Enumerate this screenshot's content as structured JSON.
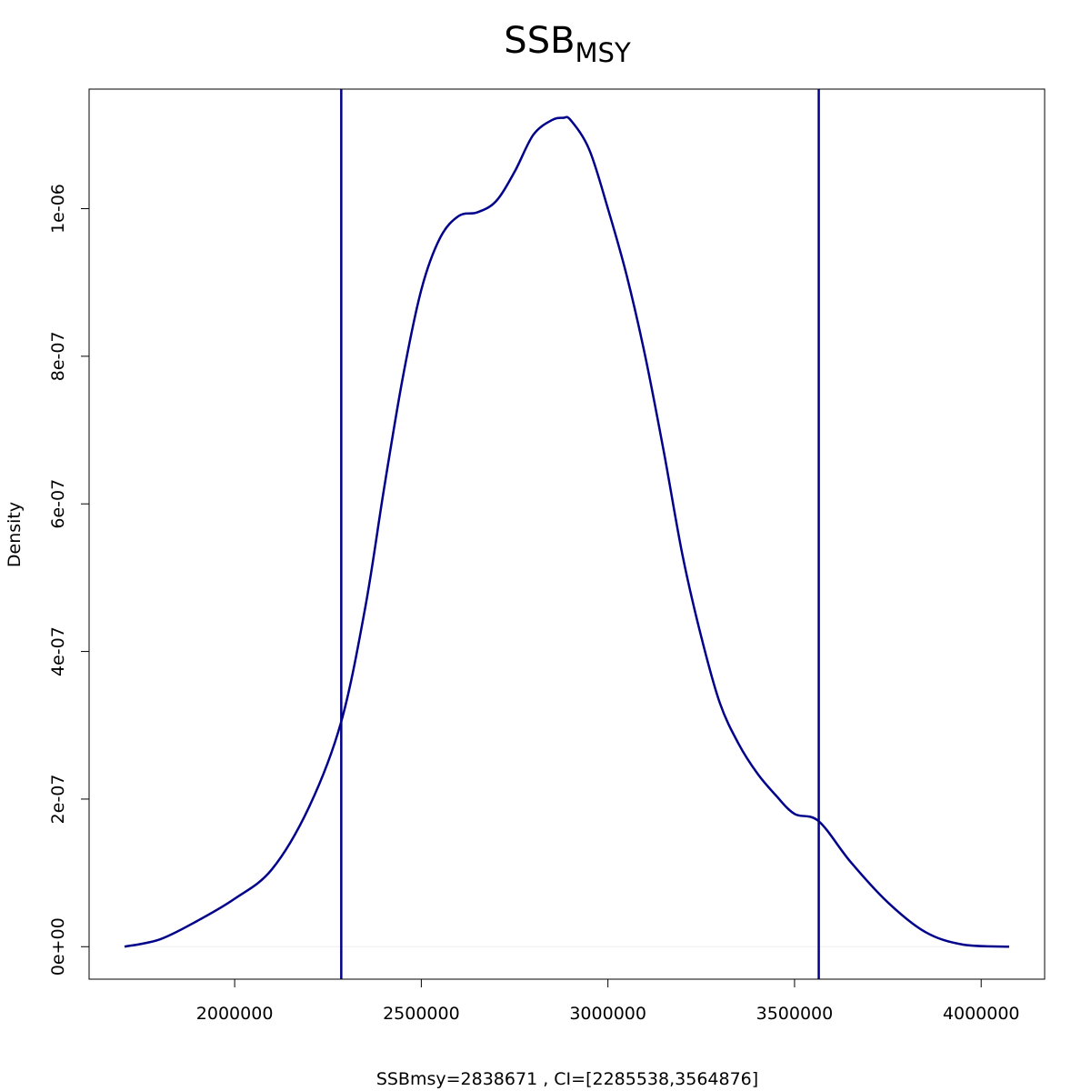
{
  "chart_data": {
    "type": "line",
    "title": "SSB",
    "title_subscript": "MSY",
    "xlabel": "SSBmsy=2838671 , CI=[2285538,3564876]",
    "ylabel": "Density",
    "xlim": [
      1610000,
      4170000
    ],
    "ylim": [
      -4.4e-08,
      1.162e-06
    ],
    "x_ticks": [
      2000000,
      2500000,
      3000000,
      3500000,
      4000000
    ],
    "x_tick_labels": [
      "2000000",
      "2500000",
      "3000000",
      "3500000",
      "4000000"
    ],
    "y_ticks": [
      0,
      2e-07,
      4e-07,
      6e-07,
      8e-07,
      1e-06
    ],
    "y_tick_labels": [
      "0e+00",
      "2e-07",
      "4e-07",
      "6e-07",
      "8e-07",
      "1e-06"
    ],
    "grid": false,
    "line_color": "#00008B",
    "baseline_color": "#eeeeee",
    "series": [
      {
        "x": [
          1705000,
          1800000,
          1900000,
          2000000,
          2100000,
          2200000,
          2285538,
          2350000,
          2400000,
          2450000,
          2500000,
          2550000,
          2600000,
          2650000,
          2700000,
          2750000,
          2800000,
          2850000,
          2880000,
          2900000,
          2950000,
          3000000,
          3050000,
          3100000,
          3150000,
          3200000,
          3250000,
          3300000,
          3350000,
          3400000,
          3450000,
          3500000,
          3564876,
          3650000,
          3750000,
          3850000,
          3950000,
          4075000
        ],
        "y": [
          0,
          1e-08,
          3.5e-08,
          6.5e-08,
          1.05e-07,
          1.9e-07,
          3.05e-07,
          4.6e-07,
          6.2e-07,
          7.7e-07,
          8.9e-07,
          9.6e-07,
          9.9e-07,
          9.95e-07,
          1.01e-06,
          1.05e-06,
          1.1e-06,
          1.12e-06,
          1.123e-06,
          1.12e-06,
          1.08e-06,
          1e-06,
          9.1e-07,
          8e-07,
          6.7e-07,
          5.3e-07,
          4.2e-07,
          3.3e-07,
          2.75e-07,
          2.35e-07,
          2.05e-07,
          1.8e-07,
          1.7e-07,
          1.15e-07,
          6e-08,
          2e-08,
          3e-09,
          0
        ]
      }
    ],
    "vlines": [
      2285538,
      3564876
    ]
  }
}
